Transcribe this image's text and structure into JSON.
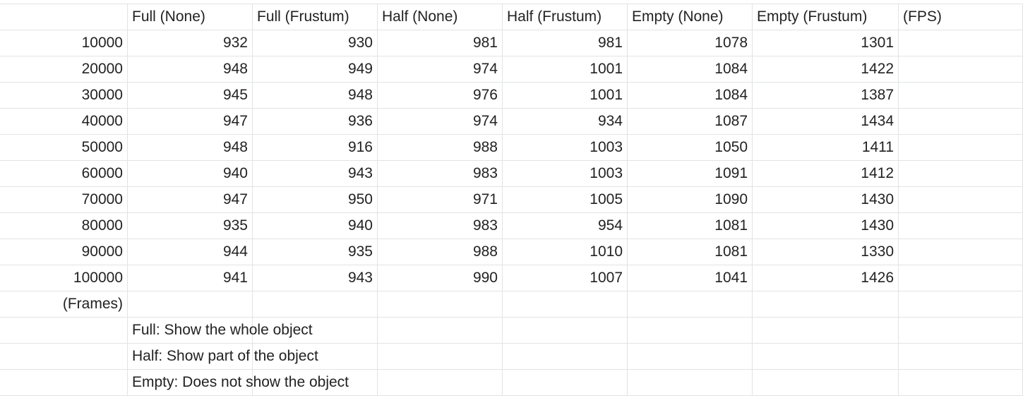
{
  "table": {
    "headers": [
      "",
      "Full (None)",
      "Full (Frustum)",
      "Half (None)",
      "Half (Frustum)",
      "Empty (None)",
      "Empty (Frustum)",
      "(FPS)"
    ],
    "rows": [
      [
        "10000",
        "932",
        "930",
        "981",
        "981",
        "1078",
        "1301",
        ""
      ],
      [
        "20000",
        "948",
        "949",
        "974",
        "1001",
        "1084",
        "1422",
        ""
      ],
      [
        "30000",
        "945",
        "948",
        "976",
        "1001",
        "1084",
        "1387",
        ""
      ],
      [
        "40000",
        "947",
        "936",
        "974",
        "934",
        "1087",
        "1434",
        ""
      ],
      [
        "50000",
        "948",
        "916",
        "988",
        "1003",
        "1050",
        "1411",
        ""
      ],
      [
        "60000",
        "940",
        "943",
        "983",
        "1003",
        "1091",
        "1412",
        ""
      ],
      [
        "70000",
        "947",
        "950",
        "971",
        "1005",
        "1090",
        "1430",
        ""
      ],
      [
        "80000",
        "935",
        "940",
        "983",
        "954",
        "1081",
        "1430",
        ""
      ],
      [
        "90000",
        "944",
        "935",
        "988",
        "1010",
        "1081",
        "1330",
        ""
      ],
      [
        "100000",
        "941",
        "943",
        "990",
        "1007",
        "1041",
        "1426",
        ""
      ],
      [
        "(Frames)",
        "",
        "",
        "",
        "",
        "",
        "",
        ""
      ],
      [
        "",
        "Full: Show the whole object",
        "",
        "",
        "",
        "",
        "",
        ""
      ],
      [
        "",
        "Half: Show part of the object",
        "",
        "",
        "",
        "",
        "",
        ""
      ],
      [
        "",
        "Empty: Does not show the object",
        "",
        "",
        "",
        "",
        "",
        ""
      ]
    ]
  }
}
